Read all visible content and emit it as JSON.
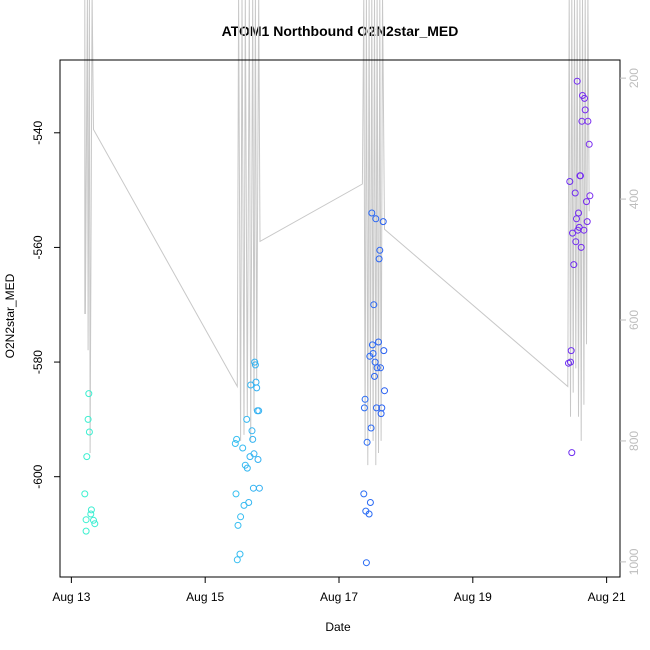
{
  "chart_data": {
    "type": "scatter",
    "title": "ATOM1 Northbound O2N2star_MED",
    "xlabel": "Date",
    "ylabel": "O2N2star_MED",
    "x_ticks": [
      {
        "day": 13,
        "label": "Aug 13"
      },
      {
        "day": 15,
        "label": "Aug 15"
      },
      {
        "day": 17,
        "label": "Aug 17"
      },
      {
        "day": 19,
        "label": "Aug 19"
      },
      {
        "day": 21,
        "label": "Aug 21"
      }
    ],
    "xlim": [
      12.83,
      21.2
    ],
    "ylim": [
      -617.5,
      -527.3
    ],
    "y_ticks": [
      -540,
      -560,
      -580,
      -600
    ],
    "y2_label_values": [
      200,
      400,
      600,
      800,
      1000
    ],
    "y2lim": [
      1025,
      170
    ],
    "colors": {
      "axis": "#000000",
      "depth_line": "#c8c8c8",
      "secondary_ticks": "#bdbdbd",
      "point_gradient": [
        "#3cf0d0",
        "#3ad0f0",
        "#2b7df5",
        "#2430f0",
        "#7a2cf0"
      ]
    },
    "points": [
      [
        13.2,
        -603
      ],
      [
        13.22,
        -607.5
      ],
      [
        13.22,
        -609.5
      ],
      [
        13.23,
        -596.5
      ],
      [
        13.25,
        -590
      ],
      [
        13.26,
        -585.5
      ],
      [
        13.27,
        -592.2
      ],
      [
        13.29,
        -606.5
      ],
      [
        13.3,
        -605.8
      ],
      [
        13.33,
        -607.6
      ],
      [
        13.35,
        -608.2
      ],
      [
        15.45,
        -594.2
      ],
      [
        15.46,
        -603
      ],
      [
        15.47,
        -593.5
      ],
      [
        15.48,
        -614.5
      ],
      [
        15.49,
        -608.5
      ],
      [
        15.52,
        -613.5
      ],
      [
        15.53,
        -607
      ],
      [
        15.56,
        -595
      ],
      [
        15.58,
        -605
      ],
      [
        15.6,
        -598
      ],
      [
        15.62,
        -590
      ],
      [
        15.63,
        -598.5
      ],
      [
        15.65,
        -604.5
      ],
      [
        15.67,
        -596.5
      ],
      [
        15.68,
        -584
      ],
      [
        15.7,
        -592
      ],
      [
        15.71,
        -593.5
      ],
      [
        15.72,
        -602
      ],
      [
        15.73,
        -596
      ],
      [
        15.74,
        -580
      ],
      [
        15.75,
        -580.5
      ],
      [
        15.76,
        -583.5
      ],
      [
        15.77,
        -584.5
      ],
      [
        15.78,
        -588.5
      ],
      [
        15.79,
        -597
      ],
      [
        15.8,
        -588.5
      ],
      [
        15.81,
        -602
      ],
      [
        17.37,
        -603
      ],
      [
        17.38,
        -588
      ],
      [
        17.39,
        -586.5
      ],
      [
        17.4,
        -606
      ],
      [
        17.41,
        -615
      ],
      [
        17.42,
        -594
      ],
      [
        17.45,
        -606.5
      ],
      [
        17.46,
        -579
      ],
      [
        17.47,
        -604.5
      ],
      [
        17.48,
        -591.5
      ],
      [
        17.49,
        -554
      ],
      [
        17.5,
        -577
      ],
      [
        17.51,
        -578.5
      ],
      [
        17.52,
        -570
      ],
      [
        17.53,
        -582.5
      ],
      [
        17.54,
        -580
      ],
      [
        17.55,
        -555
      ],
      [
        17.56,
        -588
      ],
      [
        17.57,
        -581
      ],
      [
        17.59,
        -576.5
      ],
      [
        17.6,
        -562
      ],
      [
        17.61,
        -560.5
      ],
      [
        17.62,
        -581
      ],
      [
        17.63,
        -589
      ],
      [
        17.64,
        -588
      ],
      [
        17.66,
        -555.5
      ],
      [
        17.67,
        -578
      ],
      [
        17.68,
        -585
      ],
      [
        20.43,
        -580.2
      ],
      [
        20.45,
        -548.5
      ],
      [
        20.46,
        -580
      ],
      [
        20.47,
        -578
      ],
      [
        20.48,
        -595.8
      ],
      [
        20.49,
        -557.5
      ],
      [
        20.51,
        -563
      ],
      [
        20.53,
        -550.5
      ],
      [
        20.54,
        -559
      ],
      [
        20.55,
        -555
      ],
      [
        20.56,
        -531
      ],
      [
        20.57,
        -557
      ],
      [
        20.58,
        -554
      ],
      [
        20.59,
        -556.5
      ],
      [
        20.6,
        -547.5
      ],
      [
        20.61,
        -547.5
      ],
      [
        20.62,
        -560
      ],
      [
        20.63,
        -538
      ],
      [
        20.64,
        -533.5
      ],
      [
        20.66,
        -557
      ],
      [
        20.67,
        -534
      ],
      [
        20.68,
        -536
      ],
      [
        20.7,
        -552
      ],
      [
        20.71,
        -555.5
      ],
      [
        20.72,
        -538
      ],
      [
        20.74,
        -542
      ],
      [
        20.75,
        -551
      ]
    ],
    "depth_line": [
      [
        13.2,
        590
      ],
      [
        13.2,
        60
      ],
      [
        13.21,
        590
      ],
      [
        13.24,
        60
      ],
      [
        13.25,
        650
      ],
      [
        13.27,
        60
      ],
      [
        13.28,
        820
      ],
      [
        13.31,
        60
      ],
      [
        13.33,
        285
      ],
      [
        15.48,
        710
      ],
      [
        15.5,
        60
      ],
      [
        15.53,
        800
      ],
      [
        15.55,
        60
      ],
      [
        15.58,
        790
      ],
      [
        15.6,
        60
      ],
      [
        15.63,
        760
      ],
      [
        15.66,
        60
      ],
      [
        15.68,
        800
      ],
      [
        15.71,
        60
      ],
      [
        15.73,
        750
      ],
      [
        15.75,
        60
      ],
      [
        15.77,
        700
      ],
      [
        15.8,
        60
      ],
      [
        15.82,
        470
      ],
      [
        17.35,
        375
      ],
      [
        17.37,
        60
      ],
      [
        17.39,
        800
      ],
      [
        17.41,
        60
      ],
      [
        17.43,
        840
      ],
      [
        17.45,
        60
      ],
      [
        17.47,
        780
      ],
      [
        17.49,
        60
      ],
      [
        17.51,
        800
      ],
      [
        17.53,
        60
      ],
      [
        17.55,
        840
      ],
      [
        17.57,
        60
      ],
      [
        17.59,
        820
      ],
      [
        17.61,
        60
      ],
      [
        17.63,
        800
      ],
      [
        17.65,
        60
      ],
      [
        17.68,
        450
      ],
      [
        20.42,
        710
      ],
      [
        20.44,
        60
      ],
      [
        20.46,
        760
      ],
      [
        20.48,
        60
      ],
      [
        20.5,
        720
      ],
      [
        20.52,
        60
      ],
      [
        20.54,
        680
      ],
      [
        20.56,
        60
      ],
      [
        20.58,
        760
      ],
      [
        20.6,
        60
      ],
      [
        20.62,
        800
      ],
      [
        20.64,
        60
      ],
      [
        20.66,
        740
      ],
      [
        20.68,
        60
      ],
      [
        20.7,
        640
      ],
      [
        20.72,
        60
      ],
      [
        20.74,
        420
      ]
    ]
  }
}
